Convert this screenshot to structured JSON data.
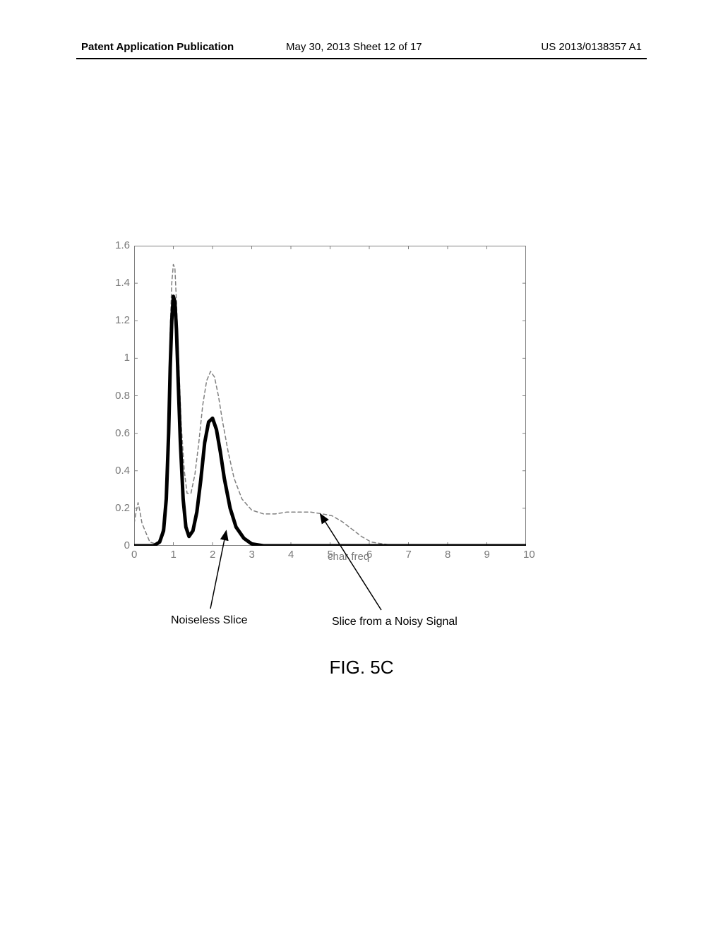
{
  "header": {
    "left": "Patent Application Publication",
    "center": "May 30, 2013  Sheet 12 of 17",
    "right": "US 2013/0138357 A1"
  },
  "chart": {
    "type": "line",
    "xlabel": "char freq",
    "xlim": [
      0,
      10
    ],
    "ylim": [
      0,
      1.6
    ],
    "xticks": [
      0,
      1,
      2,
      3,
      4,
      5,
      6,
      7,
      8,
      9,
      10
    ],
    "yticks": [
      0,
      0.2,
      0.4,
      0.6,
      0.8,
      1,
      1.2,
      1.4,
      1.6
    ],
    "background_color": "#ffffff",
    "axis_color": "#808080",
    "tick_fontsize": 15,
    "tick_color": "#808080",
    "series": [
      {
        "name": "Noiseless Slice",
        "color": "#000000",
        "line_width": 5,
        "dash": "solid",
        "points": [
          [
            0,
            0.0
          ],
          [
            0.3,
            0.0
          ],
          [
            0.5,
            0.0
          ],
          [
            0.65,
            0.02
          ],
          [
            0.75,
            0.08
          ],
          [
            0.82,
            0.25
          ],
          [
            0.88,
            0.6
          ],
          [
            0.92,
            0.95
          ],
          [
            0.96,
            1.2
          ],
          [
            1.0,
            1.33
          ],
          [
            1.04,
            1.3
          ],
          [
            1.08,
            1.15
          ],
          [
            1.12,
            0.9
          ],
          [
            1.18,
            0.55
          ],
          [
            1.25,
            0.25
          ],
          [
            1.32,
            0.1
          ],
          [
            1.4,
            0.05
          ],
          [
            1.5,
            0.08
          ],
          [
            1.6,
            0.18
          ],
          [
            1.7,
            0.35
          ],
          [
            1.8,
            0.55
          ],
          [
            1.9,
            0.66
          ],
          [
            2.0,
            0.68
          ],
          [
            2.1,
            0.62
          ],
          [
            2.2,
            0.5
          ],
          [
            2.3,
            0.36
          ],
          [
            2.45,
            0.2
          ],
          [
            2.6,
            0.1
          ],
          [
            2.8,
            0.04
          ],
          [
            3.0,
            0.01
          ],
          [
            3.3,
            0.0
          ],
          [
            4.0,
            0.0
          ],
          [
            5.0,
            0.0
          ],
          [
            6.0,
            0.0
          ],
          [
            7.0,
            0.0
          ],
          [
            8.0,
            0.0
          ],
          [
            9.0,
            0.0
          ],
          [
            10.0,
            0.0
          ]
        ]
      },
      {
        "name": "Slice from a Noisy Signal",
        "color": "#808080",
        "line_width": 1.5,
        "dash": "5,4",
        "points": [
          [
            0,
            0.12
          ],
          [
            0.05,
            0.18
          ],
          [
            0.1,
            0.23
          ],
          [
            0.15,
            0.18
          ],
          [
            0.2,
            0.12
          ],
          [
            0.28,
            0.08
          ],
          [
            0.4,
            0.02
          ],
          [
            0.55,
            0.01
          ],
          [
            0.65,
            0.02
          ],
          [
            0.75,
            0.12
          ],
          [
            0.82,
            0.35
          ],
          [
            0.88,
            0.75
          ],
          [
            0.92,
            1.15
          ],
          [
            0.96,
            1.4
          ],
          [
            1.0,
            1.5
          ],
          [
            1.04,
            1.48
          ],
          [
            1.08,
            1.3
          ],
          [
            1.13,
            1.02
          ],
          [
            1.2,
            0.65
          ],
          [
            1.28,
            0.4
          ],
          [
            1.35,
            0.28
          ],
          [
            1.45,
            0.28
          ],
          [
            1.55,
            0.38
          ],
          [
            1.65,
            0.55
          ],
          [
            1.75,
            0.75
          ],
          [
            1.85,
            0.88
          ],
          [
            1.95,
            0.93
          ],
          [
            2.05,
            0.9
          ],
          [
            2.15,
            0.8
          ],
          [
            2.25,
            0.67
          ],
          [
            2.4,
            0.5
          ],
          [
            2.55,
            0.36
          ],
          [
            2.75,
            0.25
          ],
          [
            3.0,
            0.19
          ],
          [
            3.3,
            0.17
          ],
          [
            3.6,
            0.17
          ],
          [
            3.9,
            0.18
          ],
          [
            4.2,
            0.18
          ],
          [
            4.5,
            0.18
          ],
          [
            4.8,
            0.17
          ],
          [
            5.05,
            0.16
          ],
          [
            5.3,
            0.13
          ],
          [
            5.55,
            0.09
          ],
          [
            5.8,
            0.05
          ],
          [
            6.05,
            0.02
          ],
          [
            6.35,
            0.01
          ],
          [
            6.7,
            0.0
          ],
          [
            7.5,
            0.0
          ],
          [
            8.5,
            0.0
          ],
          [
            10.0,
            0.0
          ]
        ]
      }
    ]
  },
  "annotations": {
    "noiseless": "Noiseless Slice",
    "noisy": "Slice from a Noisy Signal"
  },
  "figure_caption": "FIG. 5C"
}
